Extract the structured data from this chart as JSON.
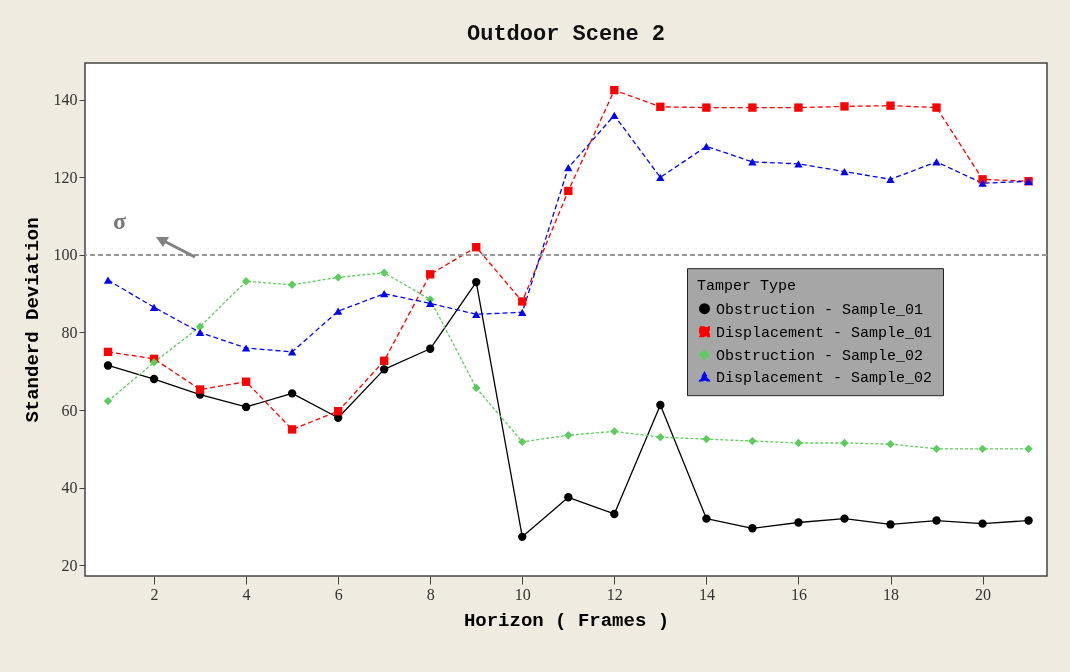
{
  "chart_data": {
    "type": "line",
    "title": "Outdoor Scene 2",
    "xlabel": "Horizon ( Frames )",
    "ylabel": "Standerd Deviation",
    "legend_title": "Tamper Type",
    "x": [
      1,
      2,
      3,
      4,
      5,
      6,
      7,
      8,
      9,
      10,
      11,
      12,
      13,
      14,
      15,
      16,
      17,
      18,
      19,
      20,
      21
    ],
    "series": [
      {
        "name": "Obstruction - Sample_01",
        "color": "#000000",
        "marker": "circle",
        "line_style": "solid",
        "values": [
          71.5,
          68,
          64,
          60.8,
          64.3,
          58,
          70.5,
          75.8,
          93,
          27.3,
          37.5,
          33.2,
          61.3,
          32,
          29.5,
          31,
          32,
          30.5,
          31.5,
          30.7,
          31.5
        ]
      },
      {
        "name": "Displacement - Sample_01",
        "color": "#ff0000",
        "marker": "square",
        "line_style": "dashed",
        "values": [
          75,
          73.2,
          65.3,
          67.3,
          55,
          59.7,
          72.7,
          95,
          102,
          88,
          116.5,
          142.5,
          138.2,
          138,
          138,
          138,
          138.3,
          138.5,
          138,
          119.5,
          119
        ]
      },
      {
        "name": "Obstruction - Sample_02",
        "color": "#5ccc5c",
        "marker": "diamond",
        "line_style": "dotted",
        "values": [
          62.3,
          72.3,
          81.5,
          93.2,
          92.3,
          94.2,
          95.4,
          88.5,
          65.7,
          51.8,
          53.5,
          54.5,
          53,
          52.5,
          52,
          51.5,
          51.5,
          51.2,
          50,
          50,
          50
        ]
      },
      {
        "name": "Displacement - Sample_02",
        "color": "#0000ff",
        "marker": "triangle",
        "line_style": "dashed",
        "values": [
          93.5,
          86.5,
          80,
          76,
          75,
          85.5,
          90,
          87.5,
          84.7,
          85.2,
          122.5,
          136,
          120,
          128,
          124,
          123.5,
          121.5,
          119.5,
          124,
          118.5,
          119
        ]
      }
    ],
    "ref_lines": [
      {
        "axis": "y",
        "value": 100,
        "label": "σ",
        "color": "#999999",
        "line_style": "dashed"
      }
    ],
    "xlim": [
      0.5,
      21.4
    ],
    "ylim": [
      17.2,
      149.5
    ],
    "xticks": [
      2,
      4,
      6,
      8,
      10,
      12,
      14,
      16,
      18,
      20
    ],
    "yticks": [
      20,
      40,
      60,
      80,
      100,
      120,
      140
    ],
    "grid": false,
    "legend": "right"
  }
}
